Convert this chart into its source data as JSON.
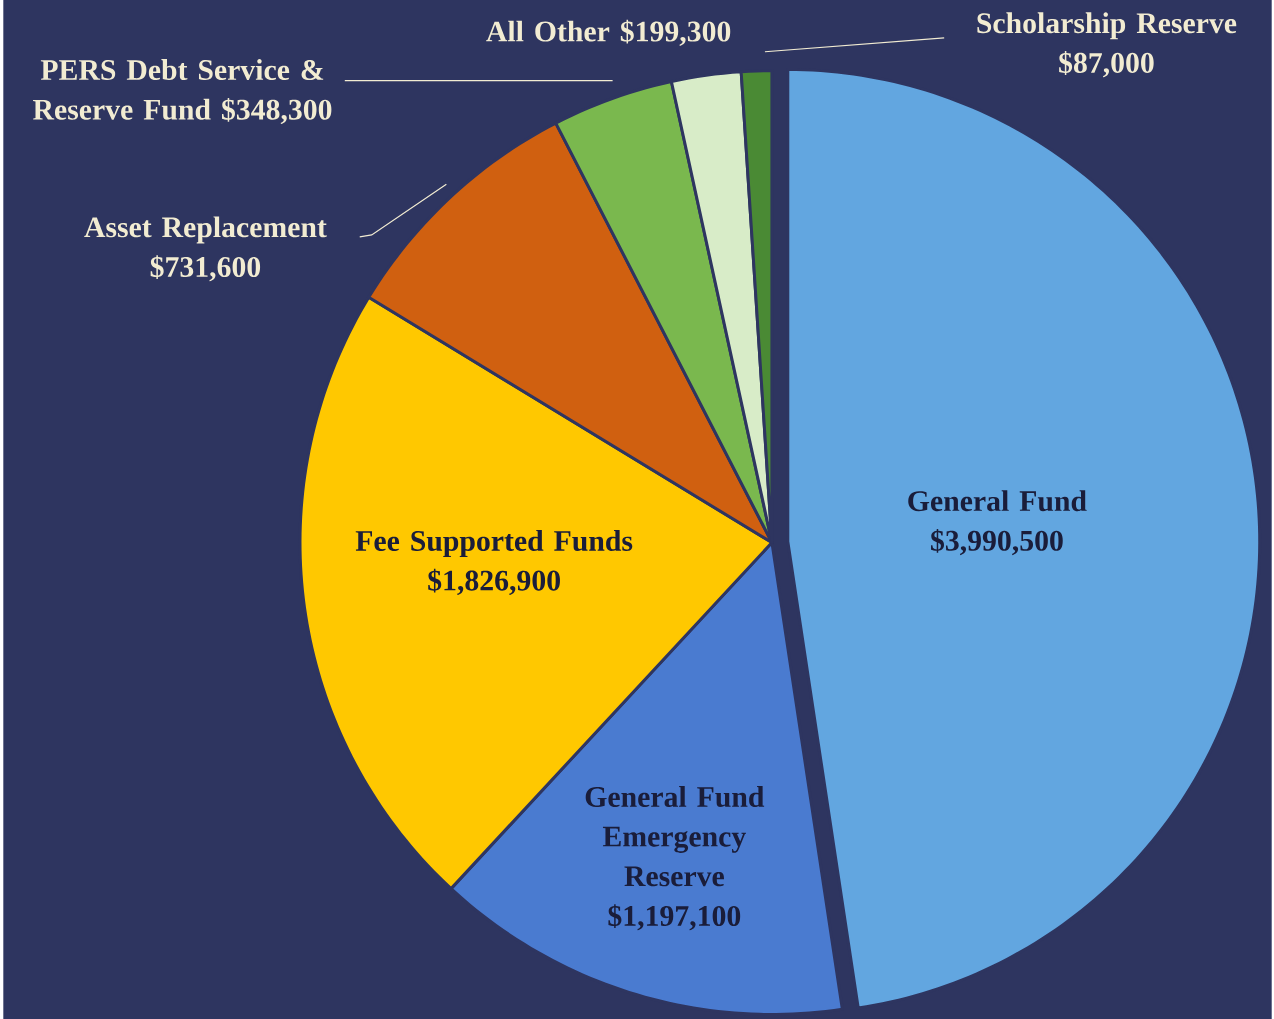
{
  "chart_data": {
    "type": "pie",
    "categories": [
      "General Fund",
      "General Fund Emergency Reserve",
      "Fee Supported Funds",
      "Asset Replacement",
      "PERS Debt Service & Reserve Fund",
      "All Other",
      "Scholarship Reserve"
    ],
    "values": [
      3990500,
      1197100,
      1826900,
      731600,
      348300,
      199300,
      87000
    ],
    "value_labels": [
      "$3,990,500",
      "$1,197,100",
      "$1,826,900",
      "$731,600",
      "$348,300",
      "$199,300",
      "$87,000"
    ],
    "colors": [
      "#62a6e0",
      "#4a7bd0",
      "#ffc800",
      "#d06010",
      "#7ab84e",
      "#d8ecc8",
      "#4a8a34"
    ]
  }
}
